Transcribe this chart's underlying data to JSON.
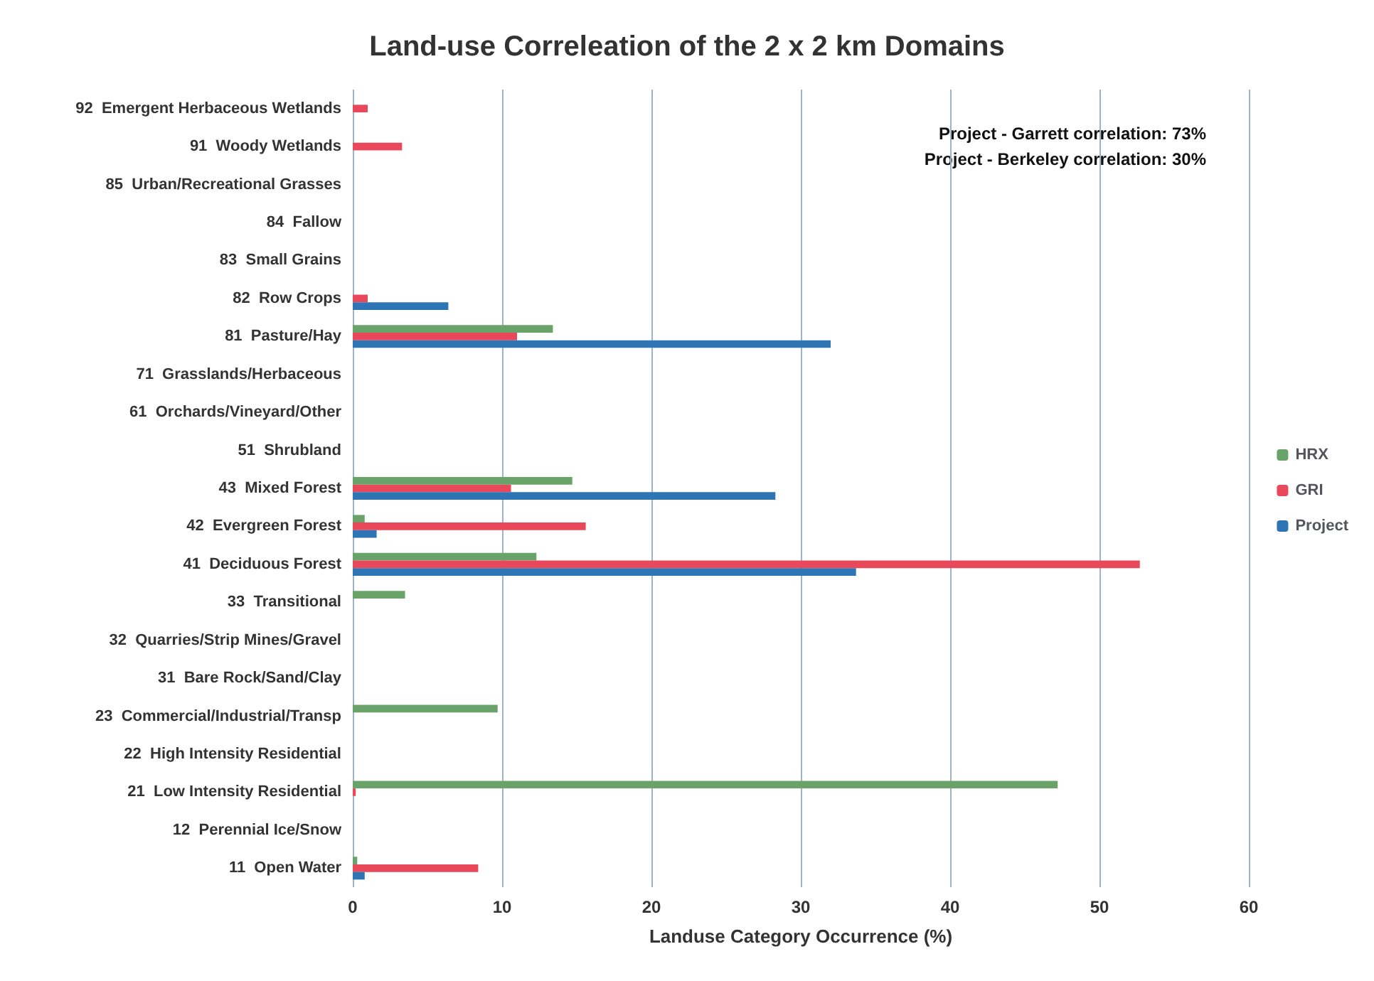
{
  "chart_data": {
    "type": "bar",
    "orientation": "horizontal",
    "title": "Land-use Correleation of the 2 x 2 km Domains",
    "xlabel": "Landuse Category Occurrence (%)",
    "categories": [
      "92  Emergent Herbaceous Wetlands",
      "91  Woody Wetlands",
      "85  Urban/Recreational Grasses",
      "84  Fallow",
      "83  Small Grains",
      "82  Row Crops",
      "81  Pasture/Hay",
      "71  Grasslands/Herbaceous",
      "61  Orchards/Vineyard/Other",
      "51  Shrubland",
      "43  Mixed Forest",
      "42  Evergreen Forest",
      "41  Deciduous Forest",
      "33  Transitional",
      "32  Quarries/Strip Mines/Gravel",
      "31  Bare Rock/Sand/Clay",
      "23  Commercial/Industrial/Transp",
      "22  High Intensity Residential",
      "21  Low Intensity Residential",
      "12  Perennial Ice/Snow",
      "11  Open Water"
    ],
    "series": [
      {
        "name": "HRX",
        "color": "#6aa36a",
        "values": [
          0,
          0,
          0,
          0,
          0,
          0,
          13.4,
          0,
          0,
          0,
          14.7,
          0.8,
          12.3,
          3.5,
          0,
          0,
          9.7,
          0,
          47.2,
          0,
          0.3
        ]
      },
      {
        "name": "GRI",
        "color": "#e8485a",
        "values": [
          1.0,
          3.3,
          0,
          0,
          0,
          1.0,
          11.0,
          0,
          0,
          0,
          10.6,
          15.6,
          52.7,
          0,
          0,
          0,
          0,
          0,
          0.2,
          0,
          8.4
        ]
      },
      {
        "name": "Project",
        "color": "#2e75b6",
        "values": [
          0,
          0,
          0,
          0,
          0,
          6.4,
          32.0,
          0,
          0,
          0,
          28.3,
          1.6,
          33.7,
          0,
          0,
          0,
          0,
          0,
          0,
          0,
          0.8
        ]
      }
    ],
    "xlim": [
      0,
      60
    ],
    "xticks": [
      0,
      10,
      20,
      30,
      40,
      50,
      60
    ],
    "grid": "x",
    "legend": "right",
    "annotations": [
      "Project - Garrett correlation: 73%",
      "Project - Berkeley correlation: 30%"
    ]
  }
}
